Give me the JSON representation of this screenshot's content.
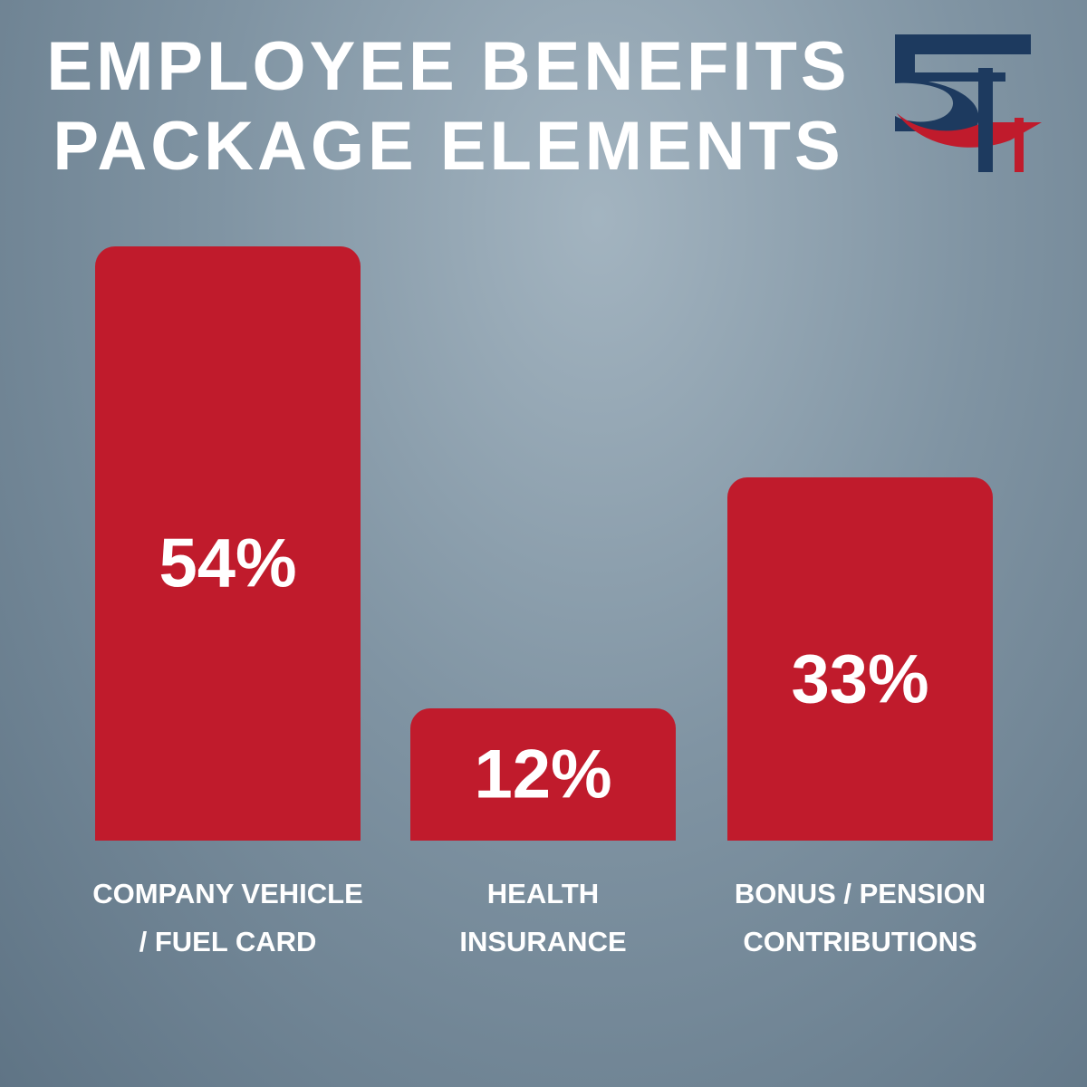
{
  "chart_data": {
    "type": "bar",
    "title": "EMPLOYEE BENEFITS PACKAGE ELEMENTS",
    "categories": [
      "COMPANY VEHICLE / FUEL CARD",
      "HEALTH INSURANCE",
      "BONUS / PENSION CONTRIBUTIONS"
    ],
    "values": [
      54,
      12,
      33
    ],
    "value_labels": [
      "54%",
      "12%",
      "33%"
    ],
    "color": "#c01b2c"
  }
}
